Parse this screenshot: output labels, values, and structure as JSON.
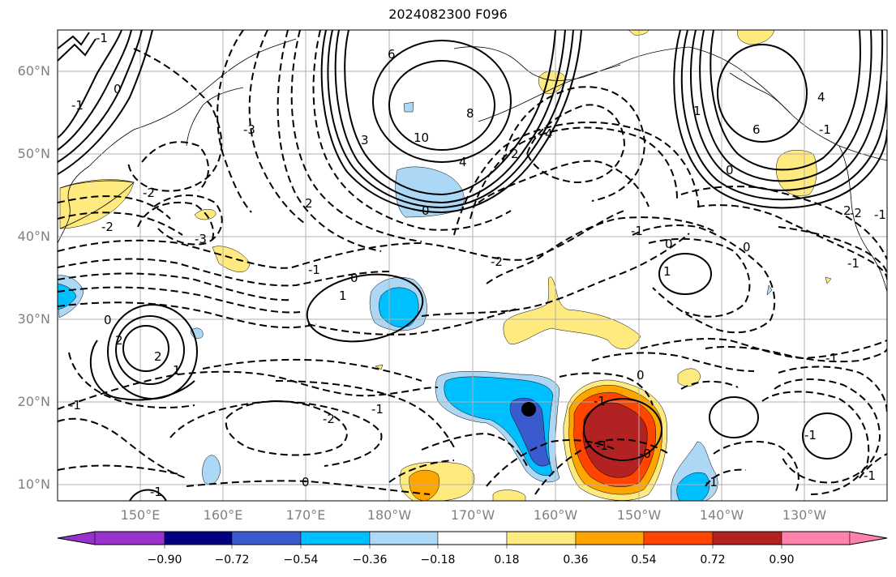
{
  "title": "2024082300 F096",
  "map": {
    "region": "North Pacific",
    "lat_labels": [
      "60°N",
      "50°N",
      "40°N",
      "30°N",
      "20°N",
      "10°N"
    ],
    "lon_labels": [
      "150°E",
      "160°E",
      "170°E",
      "180°W",
      "170°W",
      "160°W",
      "150°W",
      "140°W",
      "130°W"
    ],
    "marker": {
      "name": "center point",
      "lat": 19,
      "lon": -163
    }
  },
  "contour_labels": [
    "6",
    "8",
    "10",
    "4",
    "4",
    "0",
    "2",
    "-2",
    "-3",
    "-3",
    "3",
    "-1",
    "0",
    "-2",
    "-1",
    "-2",
    "-1",
    "-1",
    "0",
    "2",
    "2",
    "1",
    "0",
    "-1",
    "-1",
    "-2",
    "0",
    "-1",
    "2",
    "-0",
    "-1",
    "-1",
    "0",
    "0",
    "-1",
    "-1",
    "1",
    "1",
    "2",
    "6",
    "4",
    "0",
    "1",
    "-1",
    "-2",
    "-1",
    "-1",
    "0",
    "-1"
  ],
  "colorbar": {
    "ticks": [
      "−0.90",
      "−0.72",
      "−0.54",
      "−0.36",
      "−0.18",
      "0.18",
      "0.36",
      "0.54",
      "0.72",
      "0.90"
    ],
    "colors": [
      "#9932cc",
      "#000080",
      "#3a5bcd",
      "#00bfff",
      "#add8f5",
      "#ffffff",
      "#ffea80",
      "#ffa500",
      "#ff4500",
      "#b22222",
      "#ff82ab"
    ]
  }
}
